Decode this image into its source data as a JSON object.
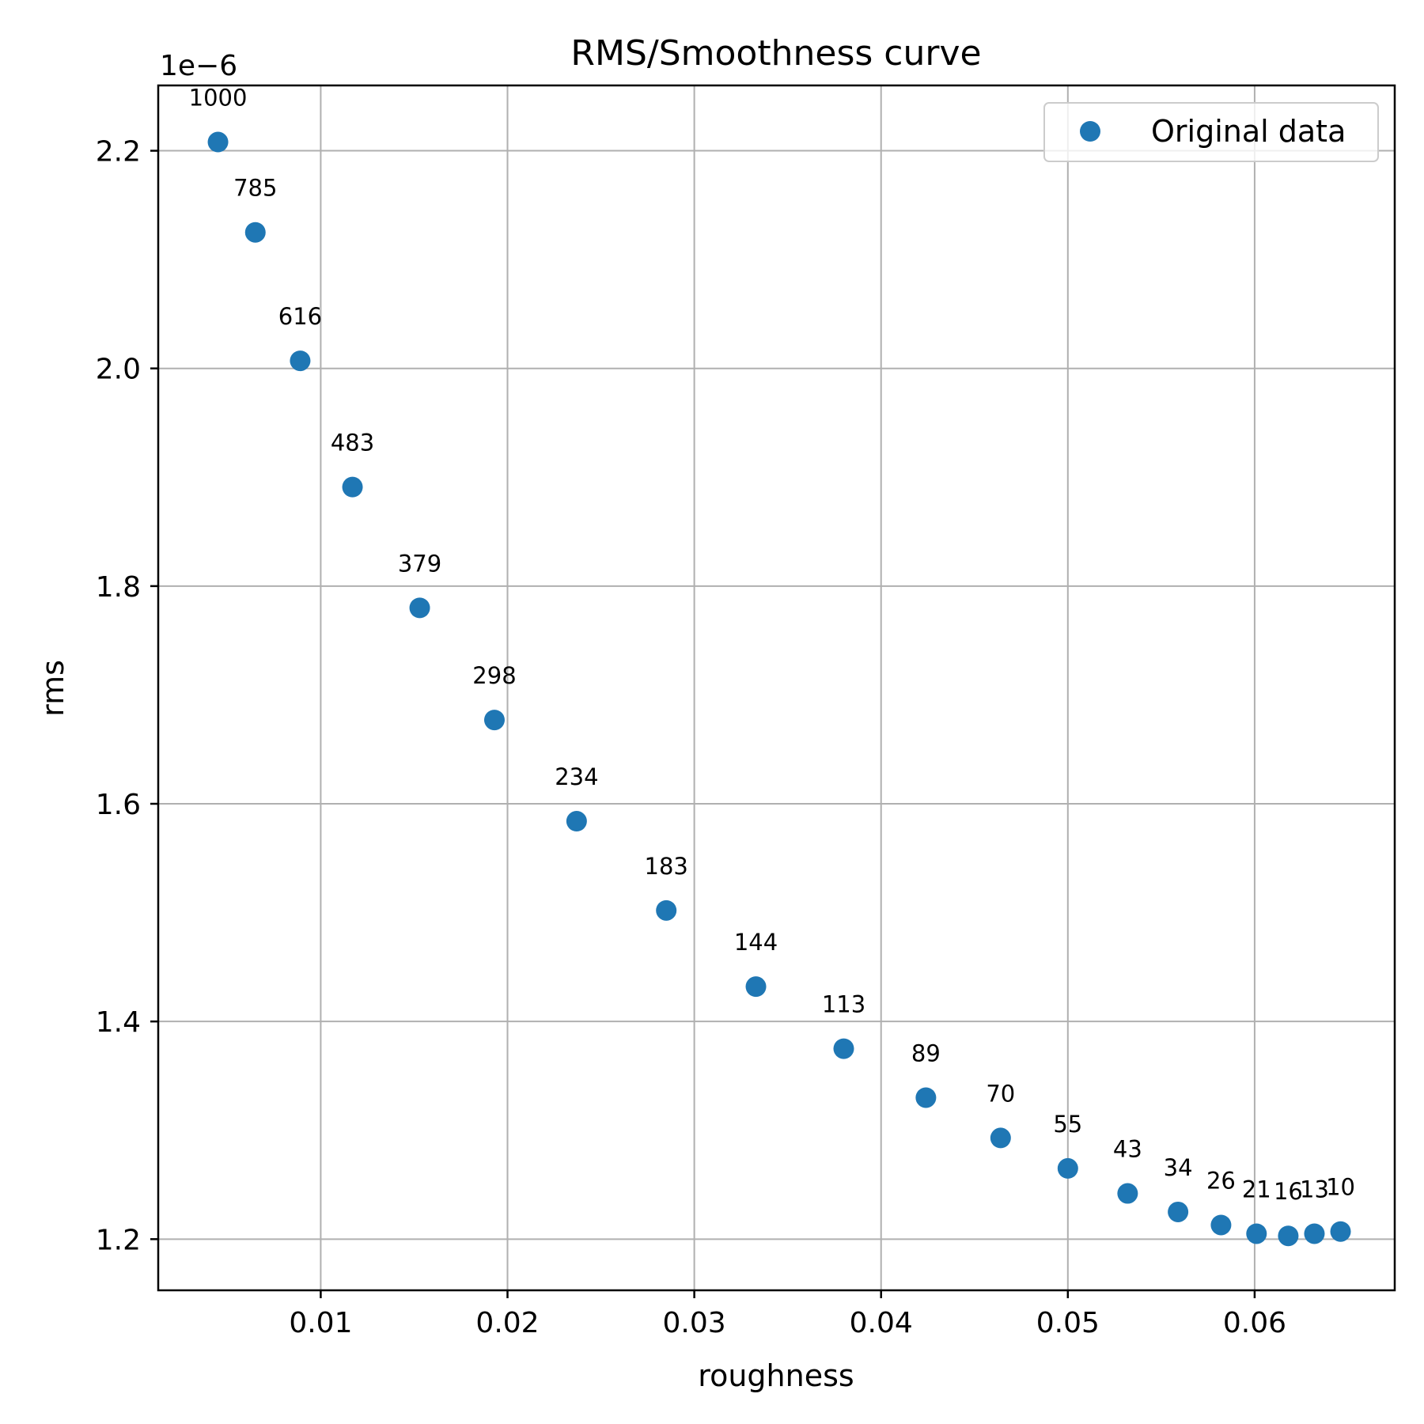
{
  "chart_data": {
    "type": "scatter",
    "title": "RMS/Smoothness curve",
    "xlabel": "roughness",
    "ylabel": "rms",
    "y_offset_label": "1e−6",
    "xlim": [
      0.0013,
      0.0675
    ],
    "ylim": [
      1.153,
      2.26
    ],
    "xticks": [
      0.01,
      0.02,
      0.03,
      0.04,
      0.05,
      0.06
    ],
    "xtick_labels": [
      "0.01",
      "0.02",
      "0.03",
      "0.04",
      "0.05",
      "0.06"
    ],
    "yticks": [
      1.2,
      1.4,
      1.6,
      1.8,
      2.0,
      2.2
    ],
    "ytick_labels": [
      "1.2",
      "1.4",
      "1.6",
      "1.8",
      "2.0",
      "2.2"
    ],
    "grid": true,
    "legend_position": "top-right",
    "series": [
      {
        "name": "Original data",
        "color": "#1f77b4",
        "x": [
          0.0045,
          0.0065,
          0.0089,
          0.0117,
          0.0153,
          0.0193,
          0.0237,
          0.0285,
          0.0333,
          0.038,
          0.0424,
          0.0464,
          0.05,
          0.0532,
          0.0559,
          0.0582,
          0.0601,
          0.0618,
          0.0632,
          0.0646
        ],
        "y": [
          2.208,
          2.125,
          2.007,
          1.891,
          1.78,
          1.677,
          1.584,
          1.502,
          1.432,
          1.375,
          1.33,
          1.293,
          1.265,
          1.242,
          1.225,
          1.213,
          1.205,
          1.203,
          1.205,
          1.207
        ],
        "point_labels": [
          "1000",
          "785",
          "616",
          "483",
          "379",
          "298",
          "234",
          "183",
          "144",
          "113",
          "89",
          "70",
          "55",
          "43",
          "34",
          "26",
          "21",
          "16",
          "13",
          "10"
        ]
      }
    ]
  }
}
